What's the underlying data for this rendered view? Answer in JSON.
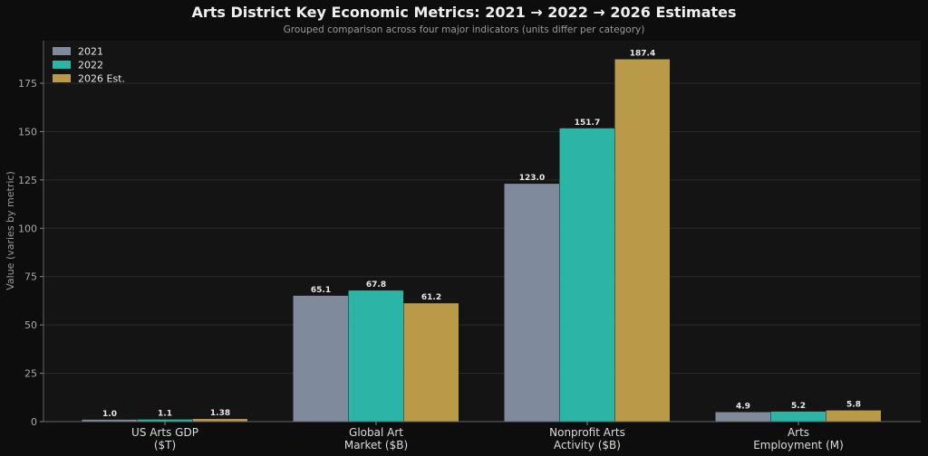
{
  "chart_data": {
    "type": "bar",
    "title": "Arts District Key Economic Metrics: 2021 → 2022 → 2026 Estimates",
    "subtitle": "Grouped comparison across four major indicators (units differ per category)",
    "ylabel": "Value (varies by metric)",
    "xlabel": "",
    "ylim": [
      0,
      197
    ],
    "yticks": [
      0,
      25,
      50,
      75,
      100,
      125,
      150,
      175
    ],
    "grid": true,
    "legend_position": "top-left",
    "categories": [
      [
        "US Arts GDP",
        "($T)"
      ],
      [
        "Global Art",
        "Market ($B)"
      ],
      [
        "Nonprofit Arts",
        "Activity ($B)"
      ],
      [
        "Arts",
        "Employment (M)"
      ]
    ],
    "series": [
      {
        "name": "2021",
        "color": "#7f8a9c",
        "values": [
          1.0,
          65.1,
          123.0,
          4.9
        ],
        "labels": [
          "1.0",
          "65.1",
          "123.0",
          "4.9"
        ]
      },
      {
        "name": "2022",
        "color": "#2ab5a7",
        "values": [
          1.1,
          67.8,
          151.7,
          5.2
        ],
        "labels": [
          "1.1",
          "67.8",
          "151.7",
          "5.2"
        ]
      },
      {
        "name": "2026 Est.",
        "color": "#b99a48",
        "values": [
          1.38,
          61.2,
          187.4,
          5.8
        ],
        "labels": [
          "1.38",
          "61.2",
          "187.4",
          "5.8"
        ]
      }
    ]
  }
}
